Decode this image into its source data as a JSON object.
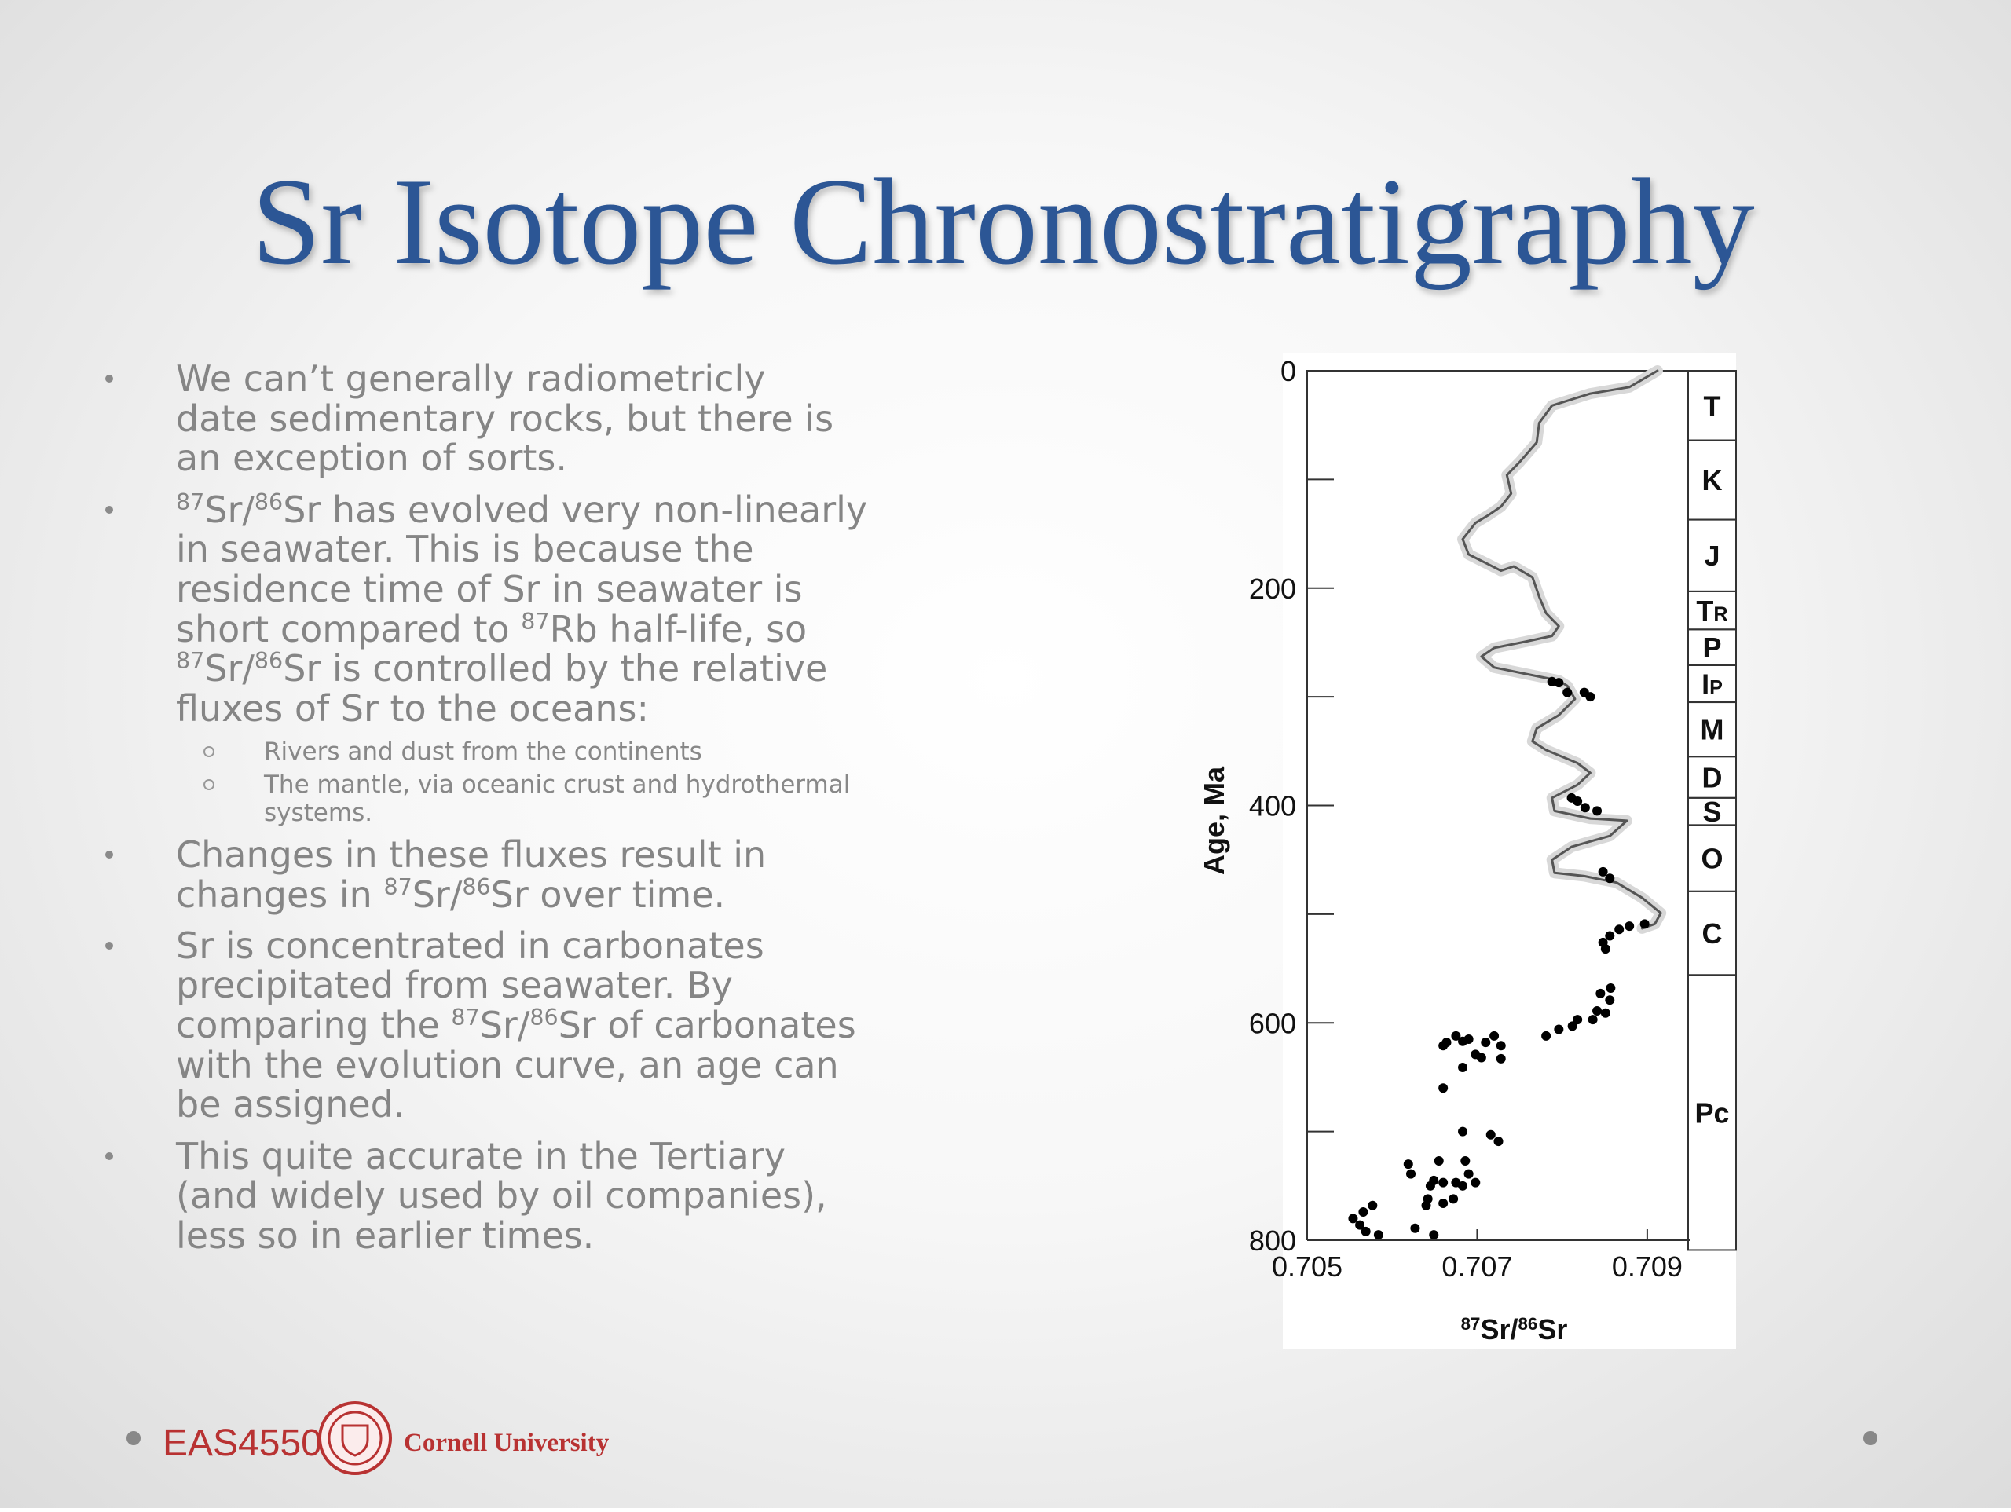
{
  "title": "Sr Isotope Chronostratigraphy",
  "bullets": [
    {
      "lines": [
        [
          "We can’t generally radiometricly"
        ],
        [
          "date sedimentary rocks, but there is"
        ],
        [
          "an exception of sorts."
        ]
      ]
    },
    {
      "lines": [
        [
          {
            "sup": "87"
          },
          "Sr/",
          {
            "sup": "86"
          },
          "Sr has evolved very non-linearly"
        ],
        [
          "in seawater. This is because the"
        ],
        [
          "residence time of Sr in seawater is"
        ],
        [
          "short compared to ",
          {
            "sup": "87"
          },
          "Rb half-life, so"
        ],
        [
          {
            "sup": "87"
          },
          "Sr/",
          {
            "sup": "86"
          },
          "Sr is controlled by the relative"
        ],
        [
          "fluxes of Sr to the oceans:"
        ]
      ],
      "sub": [
        {
          "lines": [
            [
              "Rivers and dust from the continents"
            ]
          ]
        },
        {
          "lines": [
            [
              "The mantle, via oceanic crust and hydrothermal"
            ],
            [
              "systems."
            ]
          ]
        }
      ]
    },
    {
      "lines": [
        [
          "Changes in these fluxes result in"
        ],
        [
          "changes in ",
          {
            "sup": "87"
          },
          "Sr/",
          {
            "sup": "86"
          },
          "Sr over time."
        ]
      ]
    },
    {
      "lines": [
        [
          "Sr is concentrated in carbonates"
        ],
        [
          "precipitated from seawater. By"
        ],
        [
          "comparing the ",
          {
            "sup": "87"
          },
          "Sr/",
          {
            "sup": "86"
          },
          "Sr of carbonates"
        ],
        [
          "with the evolution curve, an age can"
        ],
        [
          "be assigned."
        ]
      ]
    },
    {
      "lines": [
        [
          "This quite accurate in the Tertiary"
        ],
        [
          "(and widely used by oil companies),"
        ],
        [
          "less so in earlier times."
        ]
      ]
    }
  ],
  "footer": {
    "course": "EAS4550",
    "university": "Cornell University"
  },
  "chart_data": {
    "type": "scatter",
    "x_label": [
      {
        "sup": "87"
      },
      "Sr/",
      {
        "sup": "86"
      },
      "Sr"
    ],
    "y_label": "Age, Ma",
    "xlim": [
      0.705,
      0.7095
    ],
    "ylim": [
      0,
      800
    ],
    "y_reversed": true,
    "xticks": [
      0.705,
      0.707,
      0.709
    ],
    "yticks": [
      0,
      200,
      400,
      600,
      800
    ],
    "yminor_ticks": [
      100,
      300,
      500,
      700
    ],
    "series": [
      {
        "mode": "line",
        "color": "#555555",
        "x": [
          0.70912,
          0.70879,
          0.70833,
          0.70788,
          0.70773,
          0.7077,
          0.7075,
          0.70735,
          0.7074,
          0.70728,
          0.70713,
          0.70698,
          0.70683,
          0.7069,
          0.70713,
          0.70728,
          0.70743,
          0.70765,
          0.70773,
          0.70781,
          0.70796,
          0.70788,
          0.70758,
          0.7072,
          0.70705,
          0.7072,
          0.70758,
          0.70796,
          0.70806,
          0.70815,
          0.70796,
          0.7077,
          0.70765,
          0.70781,
          0.70818,
          0.70833,
          0.70818,
          0.70788,
          0.70791,
          0.70833,
          0.70876,
          0.70856,
          0.70811,
          0.70788,
          0.70791,
          0.70826,
          0.70864,
          0.70894,
          0.70916,
          0.70909,
          0.70894
        ],
        "values": [
          0,
          15,
          21,
          32,
          48,
          66,
          84,
          96,
          113,
          125,
          133,
          140,
          155,
          169,
          178,
          184,
          180,
          190,
          208,
          223,
          235,
          244,
          249,
          255,
          263,
          273,
          279,
          285,
          290,
          302,
          317,
          329,
          341,
          349,
          361,
          370,
          381,
          393,
          405,
          412,
          414,
          428,
          438,
          450,
          462,
          465,
          471,
          485,
          499,
          509,
          513
        ]
      },
      {
        "mode": "markers",
        "color": "#000000",
        "x": [
          0.70788,
          0.70796,
          0.70806,
          0.70826,
          0.70833,
          0.70811,
          0.70818,
          0.70827,
          0.70841,
          0.70848,
          0.70856,
          0.70897,
          0.70867,
          0.70879,
          0.70856,
          0.70851,
          0.70848,
          0.70857,
          0.70845,
          0.70856,
          0.70851,
          0.70841,
          0.70836,
          0.70818,
          0.70812,
          0.70796,
          0.70781,
          0.7072,
          0.7071,
          0.70698,
          0.7069,
          0.70675,
          0.70683,
          0.70664,
          0.7066,
          0.70728,
          0.70705,
          0.70728,
          0.70683,
          0.7066,
          0.70683,
          0.70716,
          0.70725,
          0.70655,
          0.70686,
          0.70619,
          0.70622,
          0.70649,
          0.7069,
          0.70645,
          0.7066,
          0.70675,
          0.70683,
          0.70698,
          0.70642,
          0.70672,
          0.7064,
          0.7066,
          0.70577,
          0.70566,
          0.70554,
          0.70562,
          0.70584,
          0.70627,
          0.70649,
          0.70569
        ],
        "values": [
          286,
          287,
          296,
          296,
          300,
          393,
          396,
          402,
          405,
          461,
          467,
          509,
          514,
          511,
          520,
          532,
          526,
          568,
          573,
          579,
          591,
          589,
          597,
          597,
          603,
          606,
          612,
          612,
          618,
          629,
          615,
          612,
          617,
          618,
          621,
          621,
          632,
          633,
          641,
          660,
          700,
          703,
          709,
          727,
          727,
          730,
          739,
          745,
          739,
          750,
          747,
          747,
          750,
          747,
          762,
          762,
          768,
          766,
          768,
          774,
          780,
          786,
          795,
          789,
          795,
          792
        ]
      }
    ],
    "periods": [
      {
        "label": "T",
        "start": 0,
        "end": 64
      },
      {
        "label": "K",
        "start": 64,
        "end": 137
      },
      {
        "label": "J",
        "start": 137,
        "end": 203
      },
      {
        "label": "T",
        "sub": "R",
        "start": 203,
        "end": 238
      },
      {
        "label": "P",
        "start": 238,
        "end": 271
      },
      {
        "label": "I",
        "sub": "P",
        "start": 271,
        "end": 305
      },
      {
        "label": "M",
        "start": 305,
        "end": 355
      },
      {
        "label": "D",
        "start": 355,
        "end": 393
      },
      {
        "label": "S",
        "start": 393,
        "end": 418
      },
      {
        "label": "O",
        "start": 418,
        "end": 479
      },
      {
        "label": "C",
        "start": 479,
        "end": 556
      },
      {
        "label": "Pc",
        "start": 556,
        "end": 809
      }
    ]
  }
}
